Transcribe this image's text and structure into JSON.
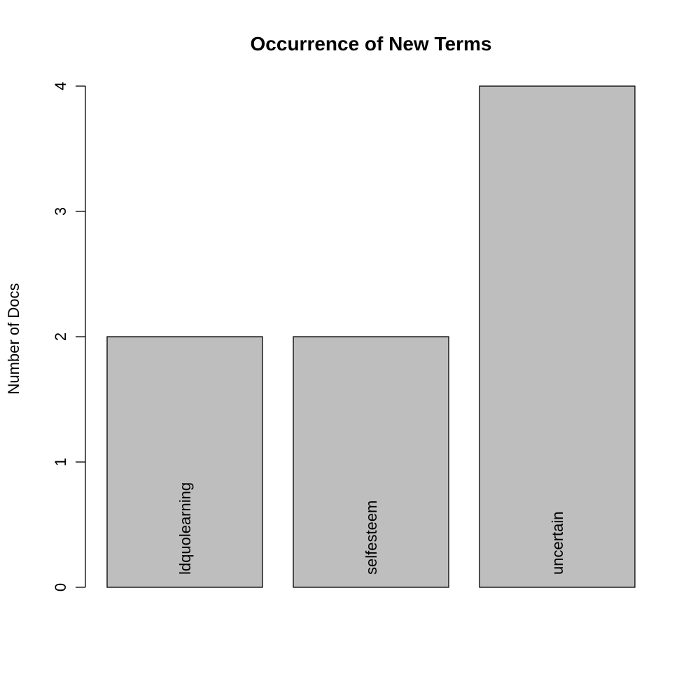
{
  "chart_data": {
    "type": "bar",
    "title": "Occurrence of New Terms",
    "xlabel": "",
    "ylabel": "Number of Docs",
    "categories": [
      "ldquolearning",
      "selfesteem",
      "uncertain"
    ],
    "values": [
      2,
      2,
      4
    ],
    "ylim": [
      0,
      4
    ],
    "yticks": [
      "0",
      "1",
      "2",
      "3",
      "4"
    ],
    "bar_color": "#bebebe",
    "grid": false,
    "legend": "none"
  }
}
